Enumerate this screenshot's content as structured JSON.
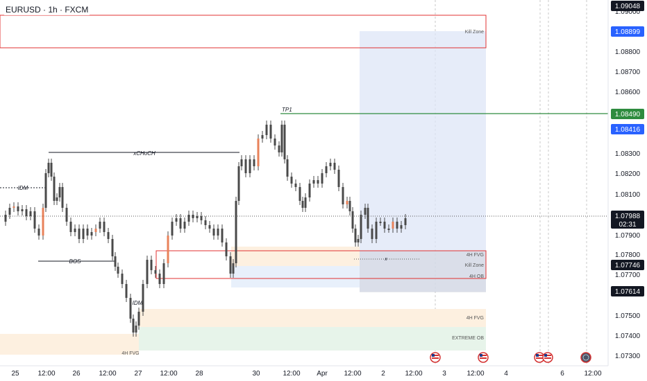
{
  "symbol": "EURUSD · 1h · FXCM",
  "price_axis": {
    "ticks": [
      "1.09000",
      "1.08800",
      "1.08700",
      "1.08600",
      "1.08300",
      "1.08200",
      "1.08100",
      "1.07900",
      "1.07800",
      "1.07700",
      "1.07500",
      "1.07400",
      "1.07300"
    ],
    "labels": {
      "top": "1.09048",
      "kill_zone": "1.08899",
      "tp": "1.08490",
      "entry": "1.08416",
      "current": "1.07988",
      "countdown": "02:31",
      "level_a": "1.07746",
      "level_b": "1.07614"
    }
  },
  "time_axis": [
    "25",
    "12:00",
    "26",
    "12:00",
    "27",
    "12:00",
    "28",
    "30",
    "12:00",
    "Apr",
    "12:00",
    "2",
    "12:00",
    "3",
    "12:00",
    "4",
    "6",
    "12:00"
  ],
  "annotations": {
    "tp": "TP1",
    "xchoch": "xCHoCH",
    "idm_left": "IDM",
    "bos": "BOS",
    "idm_low": "IDM",
    "fvg_low": "4H FVG",
    "x_mark": "x"
  },
  "zones": {
    "kill_zone_top": "Kill Zone",
    "fvg_4h": "4H FVG",
    "kill_zone_mid": "Kill Zone",
    "ob_4h": "4H OB",
    "fvg_4h_low": "4H FVG",
    "extreme_ob": "EXTREME OB"
  },
  "colors": {
    "up": "#26a69a",
    "down": "#ef5350",
    "candle": "#4a4a4a",
    "candle_accent": "#e8825a",
    "tp_line": "#2e8b3e",
    "zone_border": "#e03030",
    "kill_zone_fill": "#dde6f7",
    "fvg_fill": "#fdf0e0",
    "ob_fill": "#e8f0fb",
    "extreme_fill": "#e7f4ea",
    "label_blue": "#2962ff",
    "label_green": "#2e8b3e",
    "label_dark": "#131722"
  },
  "event_icons": [
    "us-flag-icon",
    "us-flag-icon",
    "us-flag-icon",
    "us-flag-icon",
    "globe-icon"
  ]
}
